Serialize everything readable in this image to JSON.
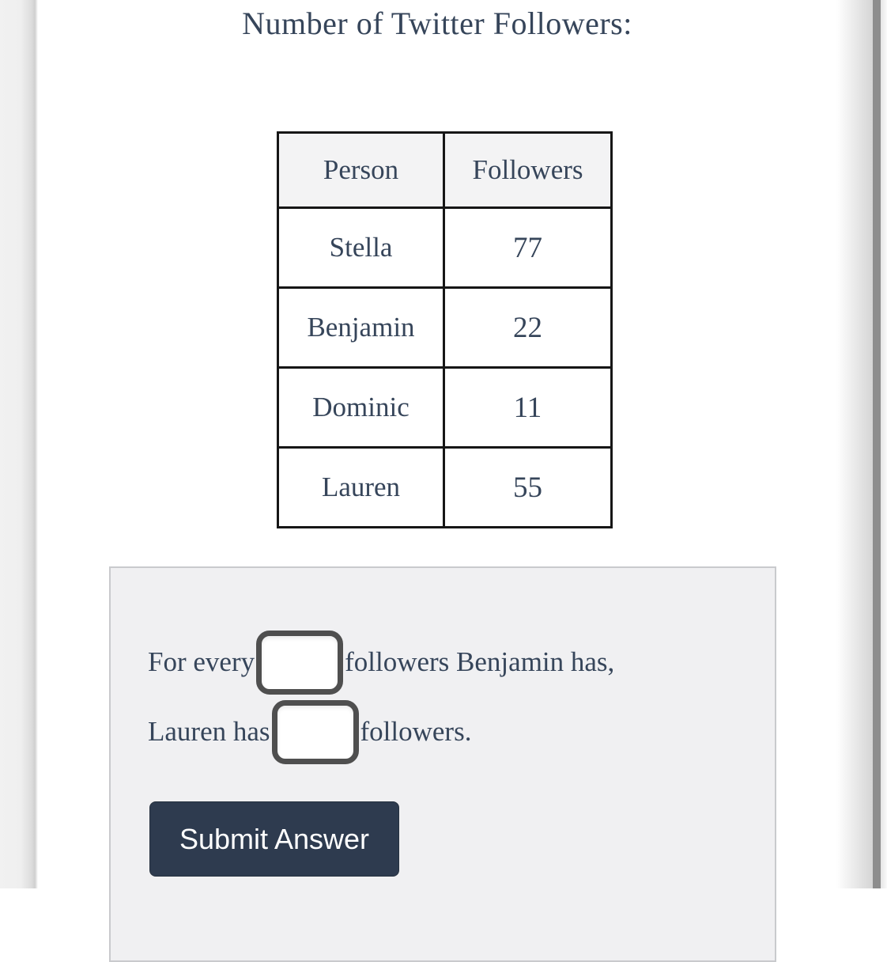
{
  "title": "Number of Twitter Followers:",
  "table": {
    "headers": {
      "person": "Person",
      "followers": "Followers"
    },
    "rows": [
      {
        "person": "Stella",
        "followers": "77"
      },
      {
        "person": "Benjamin",
        "followers": "22"
      },
      {
        "person": "Dominic",
        "followers": "11"
      },
      {
        "person": "Lauren",
        "followers": "55"
      }
    ]
  },
  "question": {
    "line1_prefix": "For every",
    "line1_suffix": "followers Benjamin has,",
    "line2_prefix": "Lauren has",
    "line2_suffix": "followers.",
    "answer1": {
      "value": "",
      "placeholder": ""
    },
    "answer2": {
      "value": "",
      "placeholder": ""
    }
  },
  "actions": {
    "submit_label": "Submit Answer"
  },
  "colors": {
    "text_navy": "#36455a",
    "button_bg": "#2e3b4f",
    "panel_bg": "#f0f0f2",
    "panel_border": "#c9cacd",
    "table_header_bg": "#f3f3f4",
    "table_border": "#161616",
    "input_border": "#4f4f4f",
    "right_bezel": "#8d8d8d"
  }
}
